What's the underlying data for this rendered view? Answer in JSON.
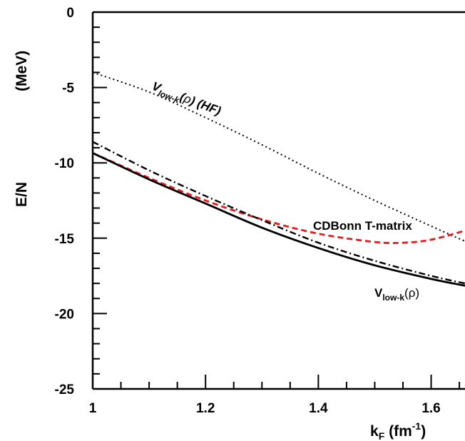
{
  "chart_data": {
    "type": "line",
    "xlabel": {
      "main": "k",
      "sub": "F",
      "unit_prefix": " (fm",
      "sup": "-1",
      "unit_suffix": ")"
    },
    "ylabel": {
      "main": "E/N",
      "unit": "(MeV)"
    },
    "xlim": [
      1.0,
      1.66
    ],
    "ylim": [
      -25,
      0
    ],
    "xticks": [
      1,
      1.2,
      1.4,
      1.6
    ],
    "xtick_labels": [
      "1",
      "1.2",
      "1.4",
      "1.6"
    ],
    "yticks": [
      0,
      -5,
      -10,
      -15,
      -20,
      -25
    ],
    "ytick_labels": [
      "0",
      "-5",
      "-10",
      "-15",
      "-20",
      "-25"
    ],
    "grid": false,
    "annotations": {
      "hf": {
        "main": "V",
        "sub": "low-k",
        "mid": "(",
        "rho": "ρ",
        "tail": ") (HF)"
      },
      "cdbonn": {
        "text": "CDBonn T-matrix"
      },
      "vlowk": {
        "main": "V",
        "sub": "low-k",
        "mid": "(",
        "rho": "ρ",
        "tail": ")"
      }
    },
    "series": [
      {
        "style": "dotted",
        "color": "#000000",
        "x": [
          1.0,
          1.1,
          1.2,
          1.3,
          1.4,
          1.5,
          1.6,
          1.66
        ],
        "y": [
          -4.0,
          -5.3,
          -7.0,
          -8.8,
          -10.7,
          -12.5,
          -14.2,
          -15.2
        ]
      },
      {
        "style": "dashed",
        "color": "#e8191b",
        "x": [
          1.0,
          1.1,
          1.2,
          1.3,
          1.4,
          1.5,
          1.55,
          1.6,
          1.66
        ],
        "y": [
          -9.35,
          -11.0,
          -12.5,
          -13.75,
          -14.7,
          -15.25,
          -15.3,
          -15.1,
          -14.5
        ]
      },
      {
        "style": "dashdot",
        "color": "#000000",
        "x": [
          1.0,
          1.1,
          1.2,
          1.3,
          1.4,
          1.5,
          1.6,
          1.66
        ],
        "y": [
          -8.6,
          -10.5,
          -12.2,
          -13.8,
          -15.3,
          -16.5,
          -17.5,
          -18.0
        ]
      },
      {
        "style": "solid",
        "color": "#000000",
        "x": [
          1.0,
          1.1,
          1.2,
          1.3,
          1.4,
          1.5,
          1.6,
          1.66
        ],
        "y": [
          -9.35,
          -11.1,
          -12.7,
          -14.3,
          -15.65,
          -16.8,
          -17.7,
          -18.15
        ]
      }
    ]
  }
}
